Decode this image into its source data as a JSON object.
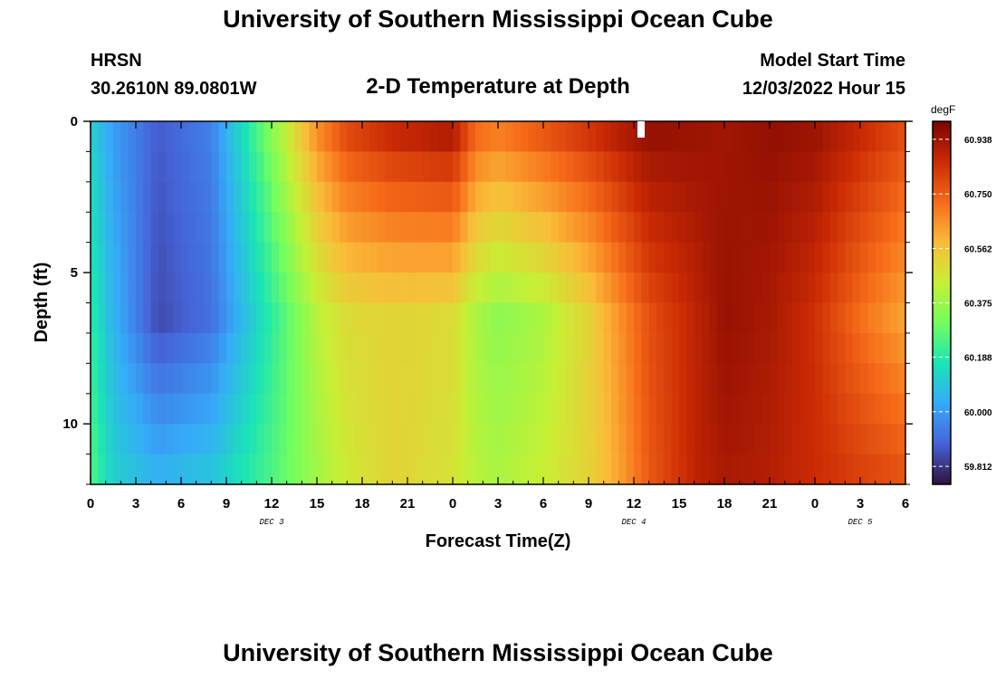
{
  "page": {
    "title": "University of Southern Mississippi Ocean Cube",
    "footer_title": "University of Southern Mississippi Ocean Cube",
    "station": "HRSN",
    "coords": "30.2610N  89.0801W",
    "model_start_label": "Model Start Time",
    "model_start_value": "12/03/2022 Hour 15"
  },
  "chart_data": {
    "type": "heatmap",
    "title": "2-D Temperature at Depth",
    "xlabel": "Forecast Time(Z)",
    "ylabel": "Depth (ft)",
    "x_ticks": [
      "0",
      "3",
      "6",
      "9",
      "12",
      "15",
      "18",
      "21",
      "0",
      "3",
      "6",
      "9",
      "12",
      "15",
      "18",
      "21",
      "0",
      "3",
      "6"
    ],
    "x_range_hours": [
      0,
      54
    ],
    "date_labels": [
      {
        "label": "DEC 3",
        "hour": 12
      },
      {
        "label": "DEC 4",
        "hour": 36
      },
      {
        "label": "DEC 5",
        "hour": 51
      }
    ],
    "y_ticks": [
      "0",
      "5",
      "10"
    ],
    "y_range_ft": [
      0,
      12
    ],
    "y_inverted": true,
    "colorbar": {
      "unit": "degF",
      "ticks": [
        "60.938",
        "60.750",
        "60.562",
        "60.375",
        "60.188",
        "60.000",
        "59.812"
      ],
      "range": [
        59.75,
        61.0
      ],
      "colors": [
        "#30123b",
        "#4662d7",
        "#36aaf9",
        "#1ae4b6",
        "#72fe5e",
        "#c7ef34",
        "#fabb39",
        "#f66b19",
        "#ca2a04",
        "#7a0403"
      ]
    },
    "profile_hours": [
      0,
      1.5,
      4.5,
      8,
      12,
      15,
      17,
      20,
      24,
      25.5,
      27,
      30,
      33,
      35,
      37,
      40,
      42,
      45,
      48,
      51,
      54
    ],
    "surface_degF": [
      60.12,
      60.0,
      59.88,
      59.95,
      60.35,
      60.68,
      60.82,
      60.9,
      60.95,
      60.76,
      60.72,
      60.8,
      60.87,
      60.92,
      60.97,
      60.95,
      60.93,
      60.96,
      60.95,
      60.88,
      60.8
    ],
    "bottom_degF": [
      60.26,
      60.12,
      60.06,
      60.1,
      60.25,
      60.38,
      60.46,
      60.52,
      60.48,
      60.42,
      60.4,
      60.45,
      60.52,
      60.62,
      60.76,
      60.88,
      60.92,
      60.9,
      60.86,
      60.82,
      60.78
    ],
    "deep_layer_degF": [
      60.2,
      60.05,
      59.85,
      59.92,
      60.2,
      60.42,
      60.5,
      60.52,
      60.5,
      60.4,
      60.35,
      60.4,
      60.52,
      60.65,
      60.78,
      60.88,
      60.95,
      60.92,
      60.85,
      60.72,
      60.62
    ]
  }
}
